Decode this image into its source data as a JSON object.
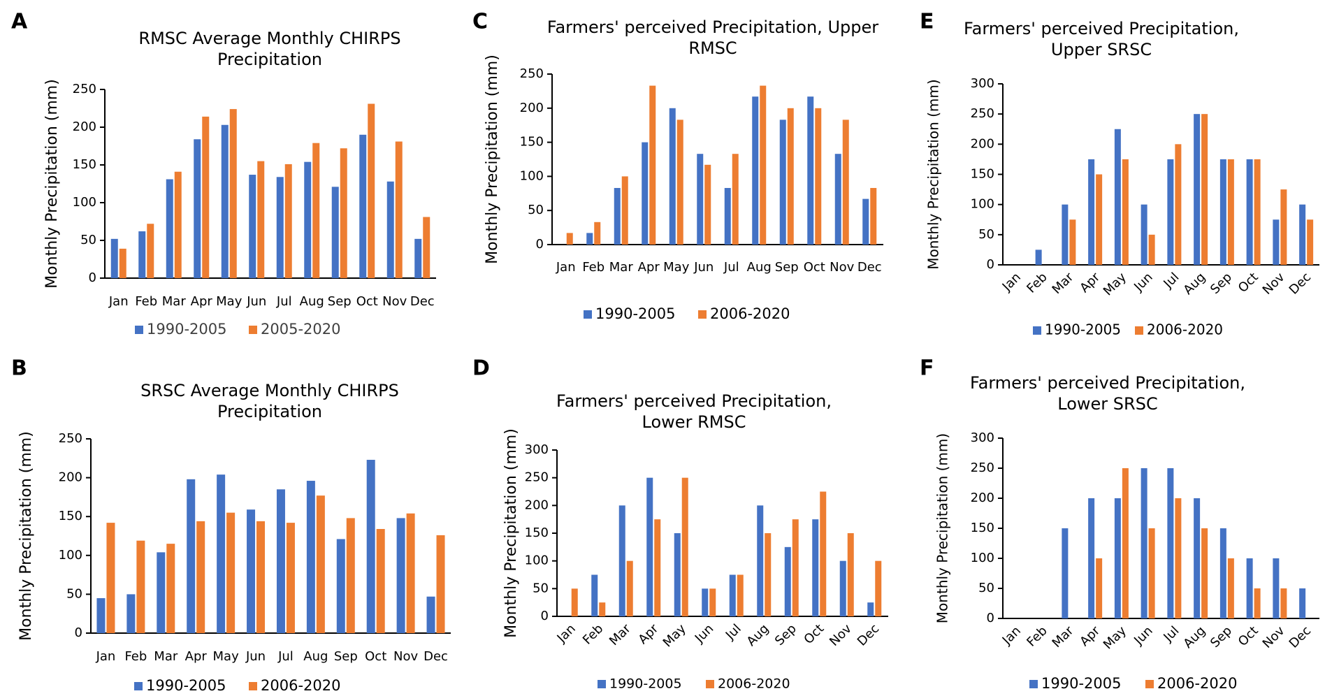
{
  "colors": {
    "series1": "#4472C4",
    "series2": "#ED7D31",
    "axis": "#000000",
    "text": "#404040"
  },
  "chart_data": [
    {
      "panel": "A",
      "type": "bar",
      "title": [
        "RMSC Average Monthly CHIRPS",
        "Precipitation"
      ],
      "xlabel": "",
      "ylabel": "Monthly Precipitation (mm)",
      "ylim": [
        0,
        250
      ],
      "yticks": [
        "0",
        "50",
        "100",
        "150",
        "200",
        "250"
      ],
      "categories": [
        "Jan",
        "Feb",
        "Mar",
        "Apr",
        "May",
        "Jun",
        "Jul",
        "Aug",
        "Sep",
        "Oct",
        "Nov",
        "Dec"
      ],
      "series": [
        {
          "name": "1990-2005",
          "values": [
            52,
            62,
            131,
            184,
            203,
            137,
            134,
            154,
            121,
            190,
            128,
            52
          ]
        },
        {
          "name": "2005-2020",
          "values": [
            39,
            72,
            141,
            214,
            224,
            155,
            151,
            179,
            172,
            231,
            181,
            81
          ]
        }
      ]
    },
    {
      "panel": "B",
      "type": "bar",
      "title": [
        "SRSC Average Monthly CHIRPS",
        "Precipitation"
      ],
      "xlabel": "",
      "ylabel": "Monthly Precipitation (mm)",
      "ylim": [
        0,
        250
      ],
      "yticks": [
        "0",
        "50",
        "100",
        "150",
        "200",
        "250"
      ],
      "categories": [
        "Jan",
        "Feb",
        "Mar",
        "Apr",
        "May",
        "Jun",
        "Jul",
        "Aug",
        "Sep",
        "Oct",
        "Nov",
        "Dec"
      ],
      "series": [
        {
          "name": "1990-2005",
          "values": [
            45,
            50,
            104,
            198,
            204,
            159,
            185,
            196,
            121,
            223,
            148,
            47
          ]
        },
        {
          "name": "2006-2020",
          "values": [
            142,
            119,
            115,
            144,
            155,
            144,
            142,
            177,
            148,
            134,
            154,
            126
          ]
        }
      ]
    },
    {
      "panel": "C",
      "type": "bar",
      "title": [
        "Farmers' perceived Precipitation, Upper",
        "RMSC"
      ],
      "xlabel": "",
      "ylabel": "Monthly Precipitation (mm)",
      "ylim": [
        0,
        250
      ],
      "yticks": [
        "0",
        "50",
        "100",
        "150",
        "200",
        "250"
      ],
      "categories": [
        "Jan",
        "Feb",
        "Mar",
        "Apr",
        "May",
        "Jun",
        "Jul",
        "Aug",
        "Sep",
        "Oct",
        "Nov",
        "Dec"
      ],
      "series": [
        {
          "name": "1990-2005",
          "values": [
            0,
            17,
            83,
            150,
            200,
            133,
            83,
            217,
            183,
            217,
            133,
            67
          ]
        },
        {
          "name": "2006-2020",
          "values": [
            17,
            33,
            100,
            233,
            183,
            117,
            133,
            233,
            200,
            200,
            183,
            83
          ]
        }
      ]
    },
    {
      "panel": "D",
      "type": "bar",
      "title": [
        "Farmers' perceived Precipitation,",
        "Lower RMSC"
      ],
      "xlabel": "",
      "ylabel": "Monthly Precipitation (mm)",
      "ylim": [
        0,
        300
      ],
      "yticks": [
        "0",
        "50",
        "100",
        "150",
        "200",
        "250",
        "300"
      ],
      "categories": [
        "Jan",
        "Feb",
        "Mar",
        "Apr",
        "May",
        "Jun",
        "Jul",
        "Aug",
        "Sep",
        "Oct",
        "Nov",
        "Dec"
      ],
      "series": [
        {
          "name": "1990-2005",
          "values": [
            0,
            75,
            200,
            250,
            150,
            50,
            75,
            200,
            125,
            175,
            100,
            25
          ]
        },
        {
          "name": "2006-2020",
          "values": [
            50,
            25,
            100,
            175,
            250,
            50,
            75,
            150,
            175,
            225,
            150,
            100
          ]
        }
      ]
    },
    {
      "panel": "E",
      "type": "bar",
      "title": [
        "Farmers' perceived Precipitation,",
        "Upper SRSC"
      ],
      "xlabel": "",
      "ylabel": "Monthly Precipitation (mm)",
      "ylim": [
        0,
        300
      ],
      "yticks": [
        "0",
        "50",
        "100",
        "150",
        "200",
        "250",
        "300"
      ],
      "categories": [
        "Jan",
        "Feb",
        "Mar",
        "Apr",
        "May",
        "Jun",
        "Jul",
        "Aug",
        "Sep",
        "Oct",
        "Nov",
        "Dec"
      ],
      "series": [
        {
          "name": "1990-2005",
          "values": [
            0,
            25,
            100,
            175,
            225,
            100,
            175,
            250,
            175,
            175,
            75,
            100
          ]
        },
        {
          "name": "2006-2020",
          "values": [
            0,
            0,
            75,
            150,
            175,
            50,
            200,
            250,
            175,
            175,
            125,
            75
          ]
        }
      ]
    },
    {
      "panel": "F",
      "type": "bar",
      "title": [
        "Farmers' perceived Precipitation,",
        "Lower SRSC"
      ],
      "xlabel": "",
      "ylabel": "Monthly Precipitation (mm)",
      "ylim": [
        0,
        300
      ],
      "yticks": [
        "0",
        "50",
        "100",
        "150",
        "200",
        "250",
        "300"
      ],
      "categories": [
        "Jan",
        "Feb",
        "Mar",
        "Apr",
        "May",
        "Jun",
        "Jul",
        "Aug",
        "Sep",
        "Oct",
        "Nov",
        "Dec"
      ],
      "series": [
        {
          "name": "1990-2005",
          "values": [
            0,
            0,
            150,
            200,
            200,
            250,
            250,
            200,
            150,
            100,
            100,
            50
          ]
        },
        {
          "name": "2006-2020",
          "values": [
            0,
            0,
            0,
            100,
            250,
            150,
            200,
            150,
            100,
            50,
            50,
            0
          ]
        }
      ]
    }
  ]
}
